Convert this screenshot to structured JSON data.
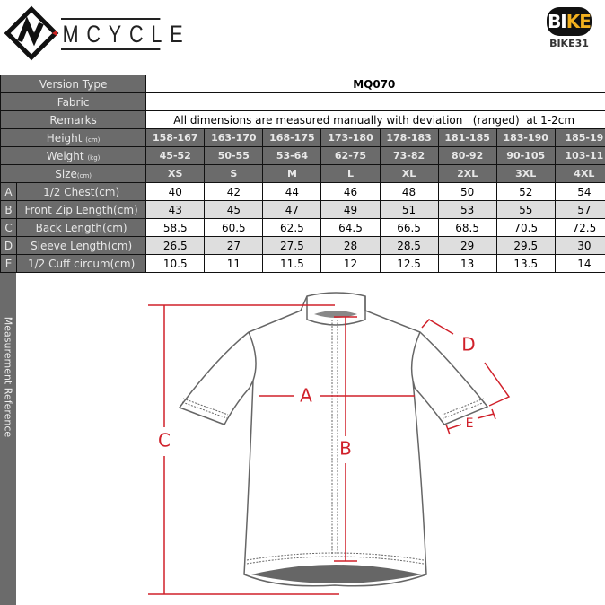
{
  "header": {
    "brand": "MCYCLE",
    "store_logo_left": "BI",
    "store_logo_right": "KE",
    "store_name": "BIKE31"
  },
  "table": {
    "version_type_label": "Version Type",
    "version_type": "MQ070",
    "fabric_label": "Fabric",
    "fabric": "",
    "remarks_label": "Remarks",
    "remarks": "All dimensions are measured manually with deviation   (ranged)  at 1-2cm",
    "height_label": "Height",
    "height_unit": "(cm)",
    "heights": [
      "158-167",
      "163-170",
      "168-175",
      "173-180",
      "178-183",
      "181-185",
      "183-190",
      "185-19"
    ],
    "weight_label": "Weight",
    "weight_unit": "(kg)",
    "weights": [
      "45-52",
      "50-55",
      "53-64",
      "62-75",
      "73-82",
      "80-92",
      "90-105",
      "103-11"
    ],
    "size_label": "Size",
    "size_unit": "(cm)",
    "sizes": [
      "XS",
      "S",
      "M",
      "L",
      "XL",
      "2XL",
      "3XL",
      "4XL"
    ],
    "rows": [
      {
        "letter": "A",
        "label": "1/2 Chest(cm)",
        "values": [
          "40",
          "42",
          "44",
          "46",
          "48",
          "50",
          "52",
          "54"
        ]
      },
      {
        "letter": "B",
        "label": "Front Zip Length(cm)",
        "values": [
          "43",
          "45",
          "47",
          "49",
          "51",
          "53",
          "55",
          "57"
        ]
      },
      {
        "letter": "C",
        "label": "Back Length(cm)",
        "values": [
          "58.5",
          "60.5",
          "62.5",
          "64.5",
          "66.5",
          "68.5",
          "70.5",
          "72.5"
        ]
      },
      {
        "letter": "D",
        "label": "Sleeve Length(cm)",
        "values": [
          "26.5",
          "27",
          "27.5",
          "28",
          "28.5",
          "29",
          "29.5",
          "30"
        ]
      },
      {
        "letter": "E",
        "label": "1/2 Cuff circum(cm)",
        "values": [
          "10.5",
          "11",
          "11.5",
          "12",
          "12.5",
          "13",
          "13.5",
          "14"
        ]
      }
    ]
  },
  "diagram": {
    "side_label": "Measurement Reference",
    "labels": {
      "a": "A",
      "b": "B",
      "c": "C",
      "d": "D",
      "e": "E"
    },
    "measure_color": "#d0202a"
  }
}
